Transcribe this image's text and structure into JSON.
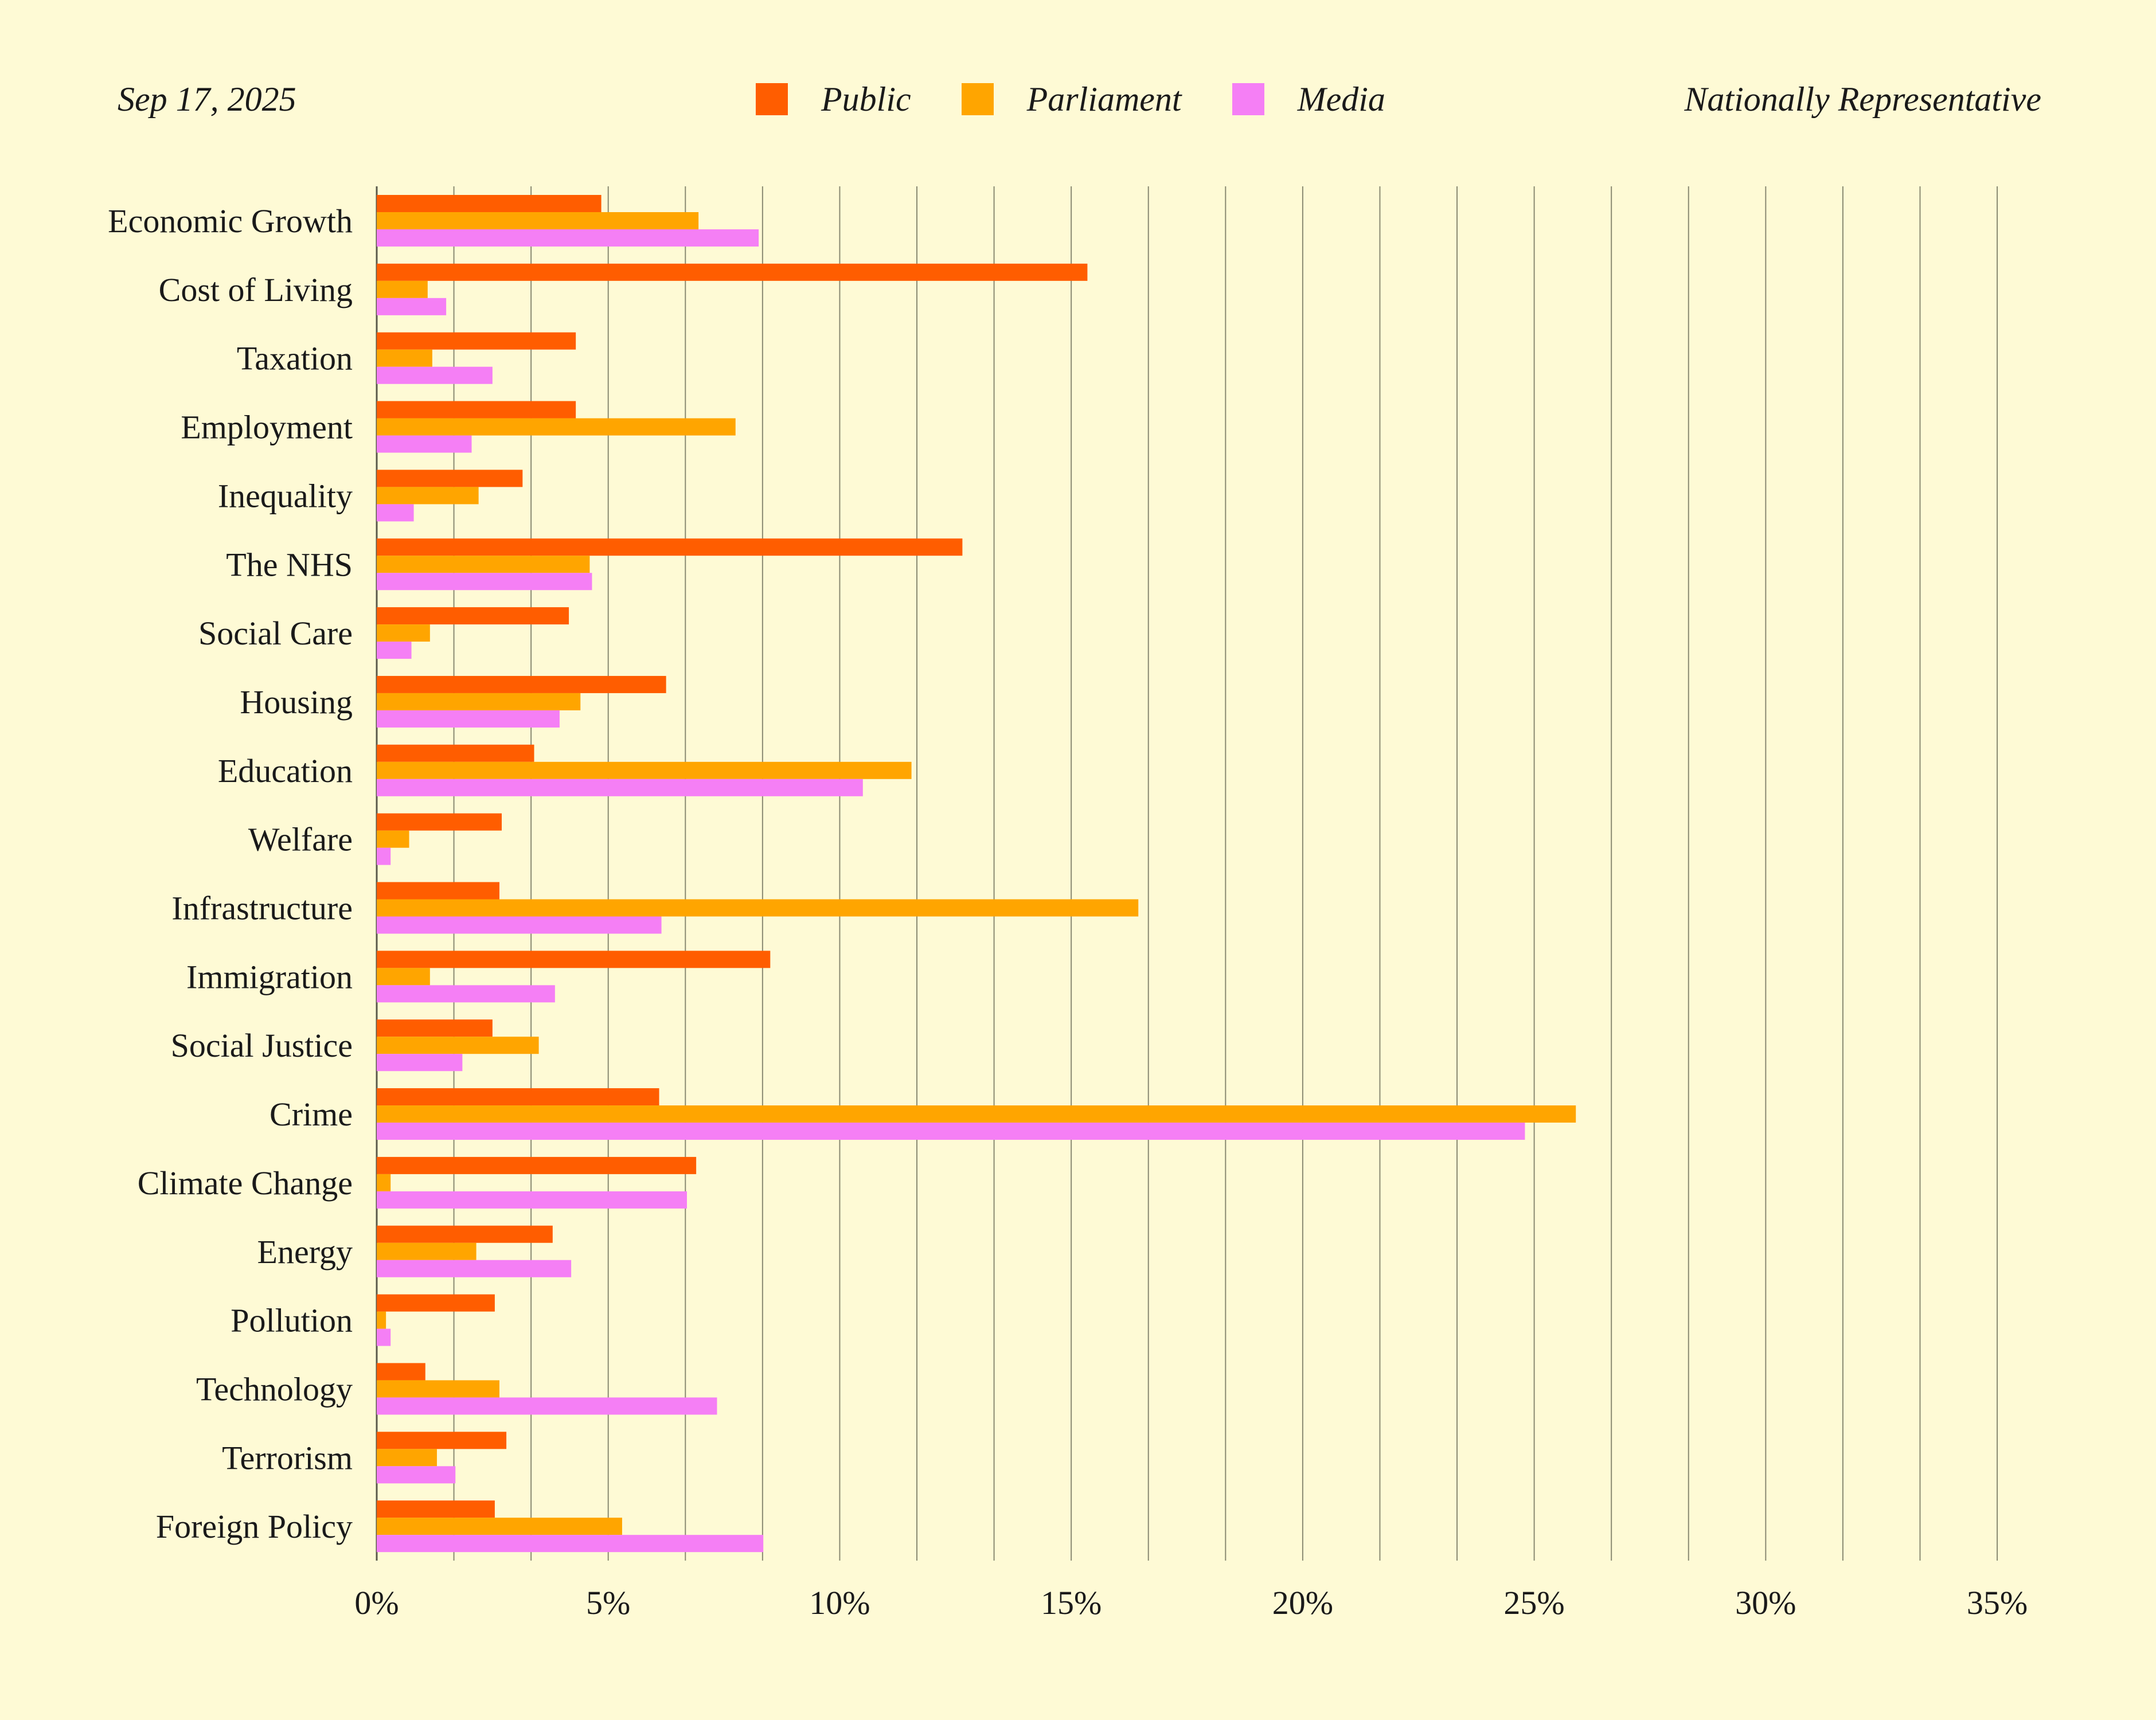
{
  "header": {
    "date": "Sep 17, 2025",
    "sample": "Nationally Representative"
  },
  "legend": [
    {
      "name": "Public",
      "color": "#ff5d00"
    },
    {
      "name": "Parliament",
      "color": "#ffa500"
    },
    {
      "name": "Media",
      "color": "#f57ff5"
    }
  ],
  "chart_data": {
    "type": "bar",
    "orientation": "horizontal",
    "categories": [
      "Economic Growth",
      "Cost of Living",
      "Taxation",
      "Employment",
      "Inequality",
      "The NHS",
      "Social Care",
      "Housing",
      "Education",
      "Welfare",
      "Infrastructure",
      "Immigration",
      "Social Justice",
      "Crime",
      "Climate Change",
      "Energy",
      "Pollution",
      "Technology",
      "Terrorism",
      "Foreign Policy"
    ],
    "series": [
      {
        "name": "Public",
        "color": "#ff5d00",
        "values": [
          4.85,
          15.35,
          4.3,
          4.3,
          3.15,
          12.65,
          4.15,
          6.25,
          3.4,
          2.7,
          2.65,
          8.5,
          2.5,
          6.1,
          6.9,
          3.8,
          2.55,
          1.05,
          2.8,
          2.55
        ]
      },
      {
        "name": "Parliament",
        "color": "#ffa500",
        "values": [
          6.95,
          1.1,
          1.2,
          7.75,
          2.2,
          4.6,
          1.15,
          4.4,
          11.55,
          0.7,
          16.45,
          1.15,
          3.5,
          25.9,
          0.3,
          2.15,
          0.2,
          2.65,
          1.3,
          5.3
        ]
      },
      {
        "name": "Media",
        "color": "#f57ff5",
        "values": [
          8.25,
          1.5,
          2.5,
          2.05,
          0.8,
          4.65,
          0.75,
          3.95,
          10.5,
          0.3,
          6.15,
          3.85,
          1.85,
          24.8,
          6.7,
          4.2,
          0.3,
          7.35,
          1.7,
          8.35
        ]
      }
    ],
    "xlim": [
      0,
      35
    ],
    "xticks": [
      0,
      5,
      10,
      15,
      20,
      25,
      30,
      35
    ],
    "xtick_labels": [
      "0%",
      "5%",
      "10%",
      "15%",
      "20%",
      "25%",
      "30%",
      "35%"
    ],
    "minor_gridline_step": 1.6667,
    "legend_position": "top-center",
    "grid": true
  }
}
